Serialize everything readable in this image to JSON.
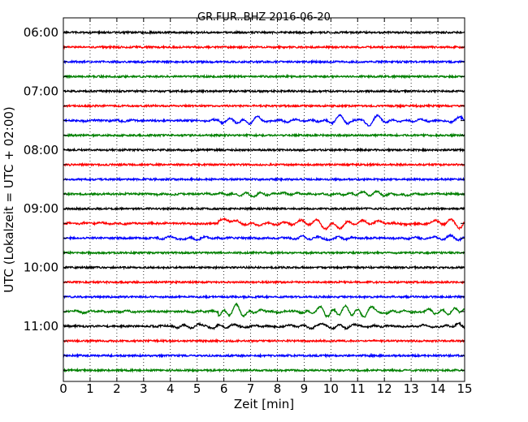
{
  "chart_data": {
    "type": "line",
    "title": "GR.FUR..BHZ 2016-06-20",
    "xlabel": "Zeit  [min]",
    "ylabel": "UTC (Lokalzeit = UTC + 02:00)",
    "xlim": [
      0,
      15
    ],
    "x_ticks": [
      "0",
      "1",
      "2",
      "3",
      "4",
      "5",
      "6",
      "7",
      "8",
      "9",
      "10",
      "11",
      "12",
      "13",
      "14",
      "15"
    ],
    "y_ticks": [
      "06:00",
      "07:00",
      "08:00",
      "09:00",
      "10:00",
      "11:00"
    ],
    "grid": true,
    "trace_start": "06:00",
    "trace_interval_min": 15,
    "trace_colors": [
      "#000000",
      "#ff0000",
      "#0000ff",
      "#008000"
    ],
    "traces": [
      {
        "start": "06:00",
        "activity": "quiet"
      },
      {
        "start": "06:15",
        "activity": "quiet"
      },
      {
        "start": "06:30",
        "activity": "quiet"
      },
      {
        "start": "06:45",
        "activity": "quiet"
      },
      {
        "start": "07:00",
        "activity": "quiet"
      },
      {
        "start": "07:15",
        "activity": "quiet"
      },
      {
        "start": "07:30",
        "activity": "strong"
      },
      {
        "start": "07:45",
        "activity": "quiet"
      },
      {
        "start": "08:00",
        "activity": "quiet"
      },
      {
        "start": "08:15",
        "activity": "quiet"
      },
      {
        "start": "08:30",
        "activity": "quiet"
      },
      {
        "start": "08:45",
        "activity": "moderate"
      },
      {
        "start": "09:00",
        "activity": "quiet"
      },
      {
        "start": "09:15",
        "activity": "strong"
      },
      {
        "start": "09:30",
        "activity": "moderate"
      },
      {
        "start": "09:45",
        "activity": "quiet"
      },
      {
        "start": "10:00",
        "activity": "quiet"
      },
      {
        "start": "10:15",
        "activity": "quiet"
      },
      {
        "start": "10:30",
        "activity": "quiet"
      },
      {
        "start": "10:45",
        "activity": "strong"
      },
      {
        "start": "11:00",
        "activity": "moderate"
      },
      {
        "start": "11:15",
        "activity": "quiet"
      },
      {
        "start": "11:30",
        "activity": "quiet"
      },
      {
        "start": "11:45",
        "activity": "quiet"
      }
    ]
  }
}
